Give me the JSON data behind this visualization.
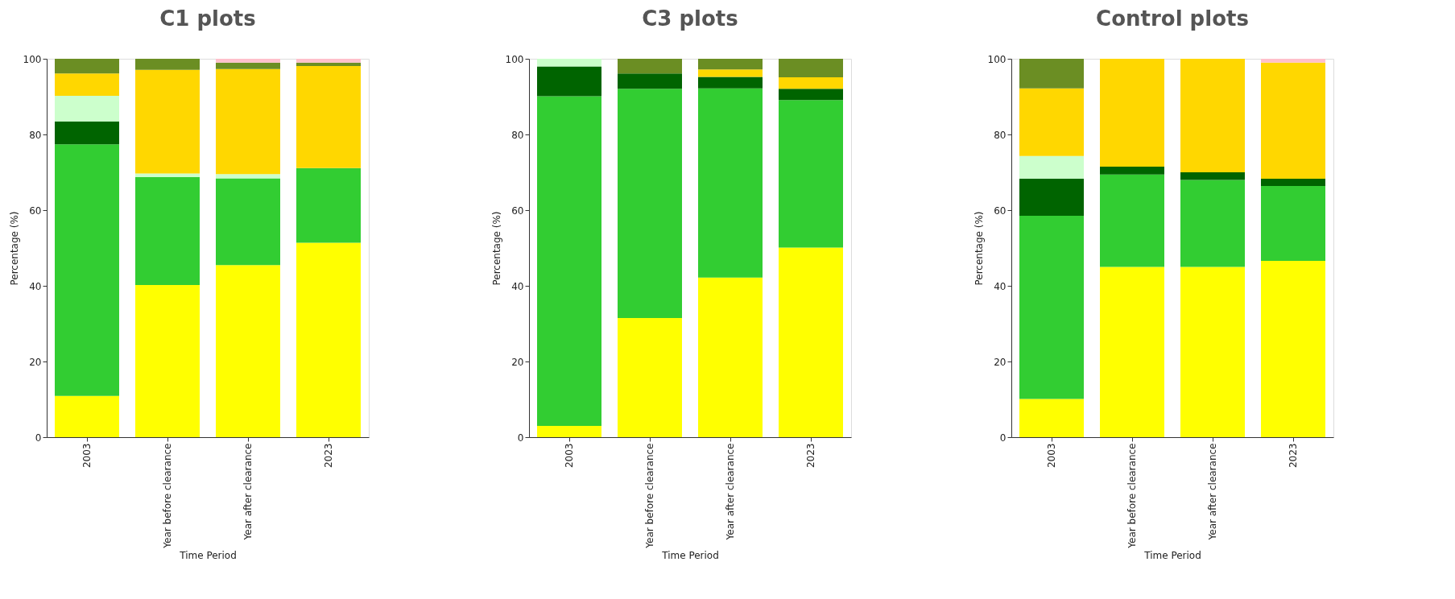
{
  "chart_data": [
    {
      "type": "bar",
      "title": "C1 plots",
      "xlabel": "Time Period",
      "ylabel": "Percentage (%)",
      "stacked": true,
      "grid": false,
      "legend": false,
      "categories": [
        "2003",
        "Year before clearance",
        "Year after clearance",
        "2023"
      ],
      "ylim": [
        0,
        100
      ],
      "yticks": [
        0,
        20,
        40,
        60,
        80,
        100
      ],
      "series": [
        {
          "color": "#ffff00",
          "values": [
            10.9,
            40.2,
            45.5,
            51.4
          ]
        },
        {
          "color": "#32cd32",
          "values": [
            66.5,
            28.5,
            22.9,
            19.7
          ]
        },
        {
          "color": "#006400",
          "values": [
            6.0,
            null,
            null,
            null
          ]
        },
        {
          "color": "#ccffcc",
          "values": [
            6.8,
            1.0,
            1.1,
            null
          ]
        },
        {
          "color": "#ffd700",
          "values": [
            5.9,
            27.4,
            27.8,
            27.0
          ]
        },
        {
          "color": "#6b8e23",
          "values": [
            3.9,
            2.9,
            1.7,
            0.9
          ]
        },
        {
          "color": "#ffc0cb",
          "values": [
            null,
            null,
            1.0,
            1.0
          ]
        }
      ]
    },
    {
      "type": "bar",
      "title": "C3 plots",
      "xlabel": "Time Period",
      "ylabel": "Percentage (%)",
      "stacked": true,
      "grid": false,
      "legend": false,
      "categories": [
        "2003",
        "Year before clearance",
        "Year after clearance",
        "2023"
      ],
      "ylim": [
        0,
        100
      ],
      "yticks": [
        0,
        20,
        40,
        60,
        80,
        100
      ],
      "series": [
        {
          "color": "#ffff00",
          "values": [
            3.0,
            31.5,
            42.2,
            50.1
          ]
        },
        {
          "color": "#32cd32",
          "values": [
            87.1,
            60.6,
            50.0,
            39.0
          ]
        },
        {
          "color": "#006400",
          "values": [
            7.9,
            4.0,
            3.0,
            3.0
          ]
        },
        {
          "color": "#ccffcc",
          "values": [
            2.0,
            null,
            null,
            null
          ]
        },
        {
          "color": "#ffd700",
          "values": [
            null,
            null,
            2.0,
            3.0
          ]
        },
        {
          "color": "#6b8e23",
          "values": [
            null,
            3.9,
            2.8,
            4.9
          ]
        }
      ]
    },
    {
      "type": "bar",
      "title": "Control plots",
      "xlabel": "Time Period",
      "ylabel": "Percentage (%)",
      "stacked": true,
      "grid": false,
      "legend": false,
      "categories": [
        "2003",
        "Year before clearance",
        "Year after clearance",
        "2023"
      ],
      "ylim": [
        0,
        100
      ],
      "yticks": [
        0,
        20,
        40,
        60,
        80,
        100
      ],
      "series": [
        {
          "color": "#ffff00",
          "values": [
            10.1,
            45.0,
            45.0,
            46.6
          ]
        },
        {
          "color": "#32cd32",
          "values": [
            48.4,
            24.4,
            23.0,
            19.8
          ]
        },
        {
          "color": "#006400",
          "values": [
            9.8,
            2.1,
            2.0,
            1.9
          ]
        },
        {
          "color": "#ccffcc",
          "values": [
            6.0,
            null,
            null,
            null
          ]
        },
        {
          "color": "#ffd700",
          "values": [
            17.9,
            28.5,
            30.0,
            30.7
          ]
        },
        {
          "color": "#6b8e23",
          "values": [
            7.8,
            null,
            null,
            null
          ]
        },
        {
          "color": "#ffc0cb",
          "values": [
            null,
            null,
            null,
            1.0
          ]
        }
      ]
    }
  ]
}
